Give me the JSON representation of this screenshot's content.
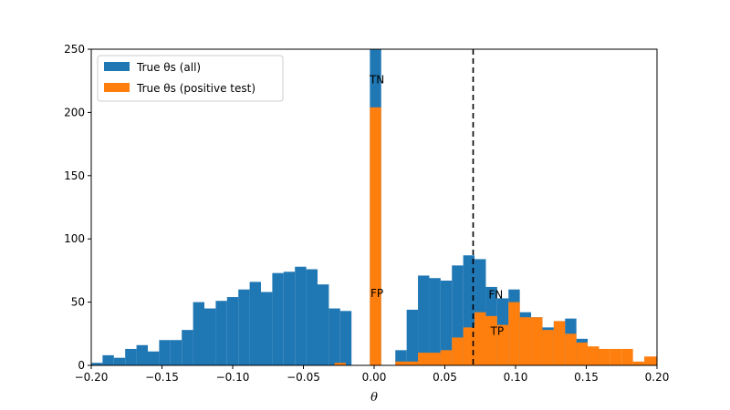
{
  "chart_data": {
    "type": "bar",
    "title": "",
    "xlabel": "θ",
    "ylabel": "",
    "xlim": [
      -0.2,
      0.2
    ],
    "ylim": [
      0,
      250
    ],
    "xticks": [
      -0.2,
      -0.15,
      -0.1,
      -0.05,
      0.0,
      0.05,
      0.1,
      0.15,
      0.2
    ],
    "xtick_labels": [
      "−0.20",
      "−0.15",
      "−0.10",
      "−0.05",
      "0.00",
      "0.05",
      "0.10",
      "0.15",
      "0.20"
    ],
    "yticks": [
      0,
      50,
      100,
      150,
      200,
      250
    ],
    "ytick_labels": [
      "0",
      "50",
      "100",
      "150",
      "200",
      "250"
    ],
    "grid": false,
    "legend": {
      "position": "upper-left",
      "entries": [
        {
          "label": "True θs (all)",
          "color": "#1f77b4"
        },
        {
          "label": "True θs (positive test)",
          "color": "#ff7f0e"
        }
      ]
    },
    "threshold": 0.07,
    "series": [
      {
        "name": "True θs (all)",
        "color": "#1f77b4",
        "bins": [
          [
            -0.2,
            -0.192,
            2
          ],
          [
            -0.192,
            -0.184,
            8
          ],
          [
            -0.184,
            -0.176,
            6
          ],
          [
            -0.176,
            -0.168,
            13
          ],
          [
            -0.168,
            -0.16,
            16
          ],
          [
            -0.16,
            -0.152,
            11
          ],
          [
            -0.152,
            -0.144,
            20
          ],
          [
            -0.144,
            -0.136,
            20
          ],
          [
            -0.136,
            -0.128,
            28
          ],
          [
            -0.128,
            -0.12,
            50
          ],
          [
            -0.12,
            -0.112,
            45
          ],
          [
            -0.112,
            -0.104,
            51
          ],
          [
            -0.104,
            -0.096,
            54
          ],
          [
            -0.096,
            -0.088,
            60
          ],
          [
            -0.088,
            -0.08,
            66
          ],
          [
            -0.08,
            -0.072,
            58
          ],
          [
            -0.072,
            -0.064,
            73
          ],
          [
            -0.064,
            -0.056,
            74
          ],
          [
            -0.056,
            -0.048,
            78
          ],
          [
            -0.048,
            -0.04,
            76
          ],
          [
            -0.04,
            -0.032,
            64
          ],
          [
            -0.032,
            -0.024,
            45
          ],
          [
            -0.024,
            -0.016,
            43
          ],
          [
            -0.003,
            0.005,
            250
          ],
          [
            0.015,
            0.023,
            12
          ],
          [
            0.023,
            0.031,
            44
          ],
          [
            0.031,
            0.039,
            71
          ],
          [
            0.039,
            0.047,
            69
          ],
          [
            0.047,
            0.055,
            67
          ],
          [
            0.055,
            0.063,
            79
          ],
          [
            0.063,
            0.071,
            87
          ],
          [
            0.071,
            0.079,
            84
          ],
          [
            0.079,
            0.087,
            62
          ],
          [
            0.087,
            0.095,
            53
          ],
          [
            0.095,
            0.103,
            60
          ],
          [
            0.103,
            0.111,
            42
          ],
          [
            0.111,
            0.119,
            38
          ],
          [
            0.119,
            0.127,
            30
          ],
          [
            0.127,
            0.135,
            35
          ],
          [
            0.135,
            0.143,
            37
          ],
          [
            0.143,
            0.151,
            21
          ],
          [
            0.151,
            0.159,
            14
          ]
        ]
      },
      {
        "name": "True θs (positive test)",
        "color": "#ff7f0e",
        "bins": [
          [
            -0.028,
            -0.02,
            2
          ],
          [
            -0.003,
            0.005,
            204
          ],
          [
            0.015,
            0.023,
            3
          ],
          [
            0.023,
            0.031,
            3
          ],
          [
            0.031,
            0.039,
            10
          ],
          [
            0.039,
            0.047,
            10
          ],
          [
            0.047,
            0.055,
            12
          ],
          [
            0.055,
            0.063,
            22
          ],
          [
            0.063,
            0.071,
            30
          ],
          [
            0.071,
            0.079,
            42
          ],
          [
            0.079,
            0.087,
            39
          ],
          [
            0.087,
            0.095,
            32
          ],
          [
            0.095,
            0.103,
            50
          ],
          [
            0.103,
            0.111,
            38
          ],
          [
            0.111,
            0.119,
            38
          ],
          [
            0.119,
            0.127,
            28
          ],
          [
            0.127,
            0.135,
            35
          ],
          [
            0.135,
            0.143,
            25
          ],
          [
            0.143,
            0.151,
            18
          ],
          [
            0.151,
            0.159,
            15
          ],
          [
            0.159,
            0.167,
            13
          ],
          [
            0.167,
            0.175,
            13
          ],
          [
            0.175,
            0.183,
            13
          ],
          [
            0.183,
            0.191,
            3
          ],
          [
            0.191,
            0.2,
            7
          ]
        ]
      }
    ],
    "annotations": [
      {
        "text": "TN",
        "x": 0.002,
        "y": 223
      },
      {
        "text": "FP",
        "x": 0.002,
        "y": 54
      },
      {
        "text": "FN",
        "x": 0.086,
        "y": 53
      },
      {
        "text": "TP",
        "x": 0.087,
        "y": 24
      }
    ]
  }
}
